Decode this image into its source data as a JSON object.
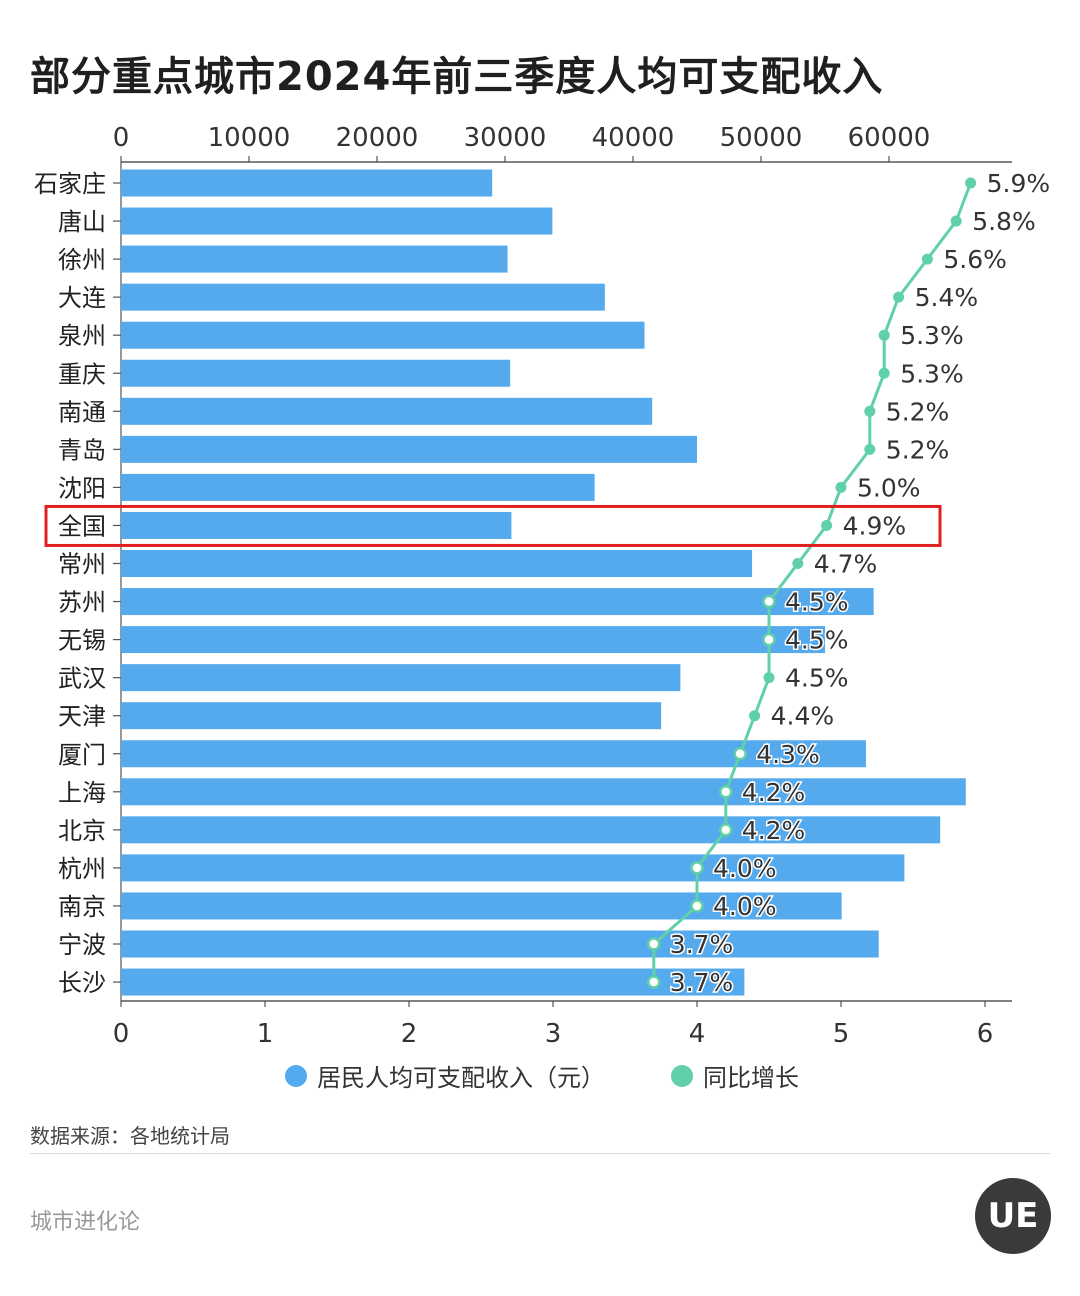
{
  "colors": {
    "bar": "#55aaee",
    "line": "#5fd0a8",
    "highlight_box": "#e02020",
    "axis": "#555555"
  },
  "page": {
    "title": "部分重点城市2024年前三季度人均可支配收入",
    "source": "数据来源：各地统计局",
    "brand": "城市进化论",
    "logo_text": "UE"
  },
  "chart_data": {
    "type": "bar",
    "orientation": "horizontal",
    "title": "部分重点城市2024年前三季度人均可支配收入",
    "categories": [
      "石家庄",
      "唐山",
      "徐州",
      "大连",
      "泉州",
      "重庆",
      "南通",
      "青岛",
      "沈阳",
      "全国",
      "常州",
      "苏州",
      "无锡",
      "武汉",
      "天津",
      "厦门",
      "上海",
      "北京",
      "杭州",
      "南京",
      "宁波",
      "长沙"
    ],
    "highlight_category": "全国",
    "top_axis": {
      "ticks": [
        0,
        10000,
        20000,
        30000,
        40000,
        50000,
        60000
      ],
      "range": [
        0,
        70000
      ]
    },
    "bottom_axis": {
      "ticks": [
        0,
        1,
        2,
        3,
        4,
        5,
        6
      ],
      "range": [
        0,
        6.2
      ]
    },
    "series": [
      {
        "name": "居民人均可支配收入（元）",
        "type": "bar",
        "axis": "top",
        "values": [
          29000,
          33700,
          30200,
          37800,
          40900,
          30400,
          41500,
          45000,
          37000,
          30500,
          49300,
          58800,
          55000,
          43700,
          42200,
          58200,
          66000,
          64000,
          61200,
          56300,
          59200,
          48700
        ]
      },
      {
        "name": "同比增长",
        "type": "line",
        "axis": "bottom",
        "values": [
          5.9,
          5.8,
          5.6,
          5.4,
          5.3,
          5.3,
          5.2,
          5.2,
          5.0,
          4.9,
          4.7,
          4.5,
          4.5,
          4.5,
          4.4,
          4.3,
          4.2,
          4.2,
          4.0,
          4.0,
          3.7,
          3.7
        ],
        "labels": [
          "5.9%",
          "5.8%",
          "5.6%",
          "5.4%",
          "5.3%",
          "5.3%",
          "5.2%",
          "5.2%",
          "5.0%",
          "4.9%",
          "4.7%",
          "4.5%",
          "4.5%",
          "4.5%",
          "4.4%",
          "4.3%",
          "4.2%",
          "4.2%",
          "4.0%",
          "4.0%",
          "3.7%",
          "3.7%"
        ]
      }
    ],
    "legend": [
      "居民人均可支配收入（元）",
      "同比增长"
    ],
    "legend_position": "bottom"
  }
}
